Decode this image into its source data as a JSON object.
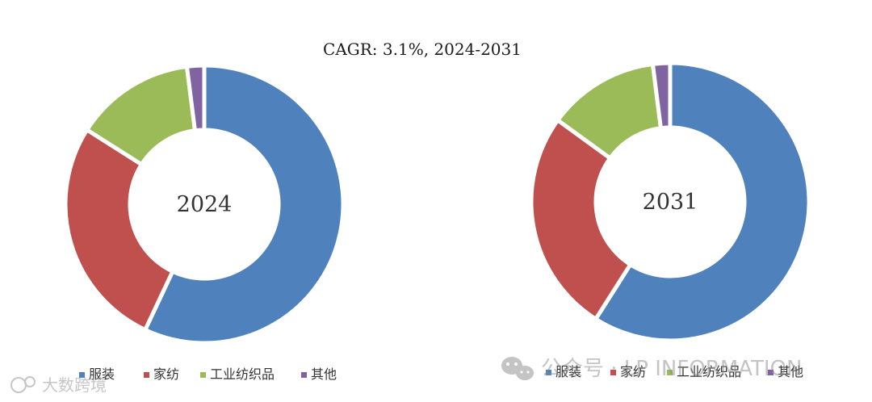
{
  "title": "CAGR:  3.1%, 2024-2031",
  "categories": [
    "服装",
    "家纺",
    "工业纺织品",
    "其他"
  ],
  "colors": [
    "#4F81BD",
    "#C0504D",
    "#9BBB59",
    "#8064A2"
  ],
  "chart_data": [
    {
      "type": "pie",
      "donut": true,
      "center_label": "2024",
      "title": "CAGR:  3.1%, 2024-2031",
      "categories": [
        "服装",
        "家纺",
        "工业纺织品",
        "其他"
      ],
      "values": [
        57,
        27,
        14,
        2
      ],
      "legend": "bottom"
    },
    {
      "type": "pie",
      "donut": true,
      "center_label": "2031",
      "title": "CAGR:  3.1%, 2024-2031",
      "categories": [
        "服装",
        "家纺",
        "工业纺织品",
        "其他"
      ],
      "values": [
        59,
        26,
        13,
        2
      ],
      "legend": "bottom"
    }
  ],
  "watermarks": {
    "left": "大数跨境",
    "right": "公众号 · LP INFORMATION"
  }
}
